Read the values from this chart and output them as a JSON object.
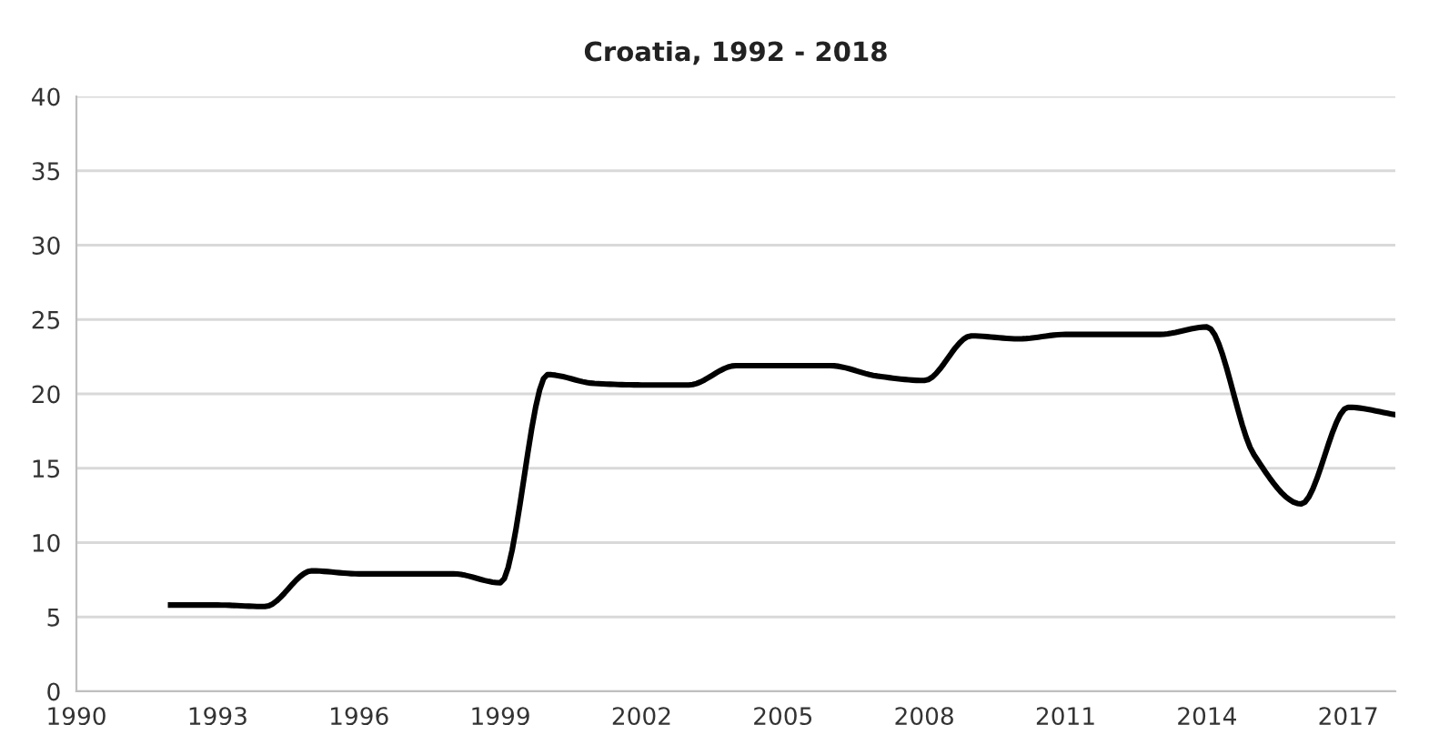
{
  "chart_data": {
    "type": "line",
    "title": "Croatia, 1992 - 2018",
    "x": [
      1992,
      1993,
      1994,
      1995,
      1996,
      1997,
      1998,
      1999,
      2000,
      2001,
      2002,
      2003,
      2004,
      2005,
      2006,
      2007,
      2008,
      2009,
      2010,
      2011,
      2012,
      2013,
      2014,
      2015,
      2016,
      2017,
      2018
    ],
    "series": [
      {
        "color": "#000000",
        "values": [
          5.8,
          5.8,
          5.7,
          8.1,
          7.9,
          7.9,
          7.9,
          7.3,
          21.3,
          20.7,
          20.6,
          20.6,
          21.9,
          21.9,
          21.9,
          21.2,
          20.9,
          23.9,
          23.7,
          24.0,
          24.0,
          24.0,
          24.5,
          15.9,
          12.6,
          19.1,
          18.6
        ]
      }
    ],
    "xlim": [
      1990,
      2018
    ],
    "xticks": [
      1990,
      1993,
      1996,
      1999,
      2002,
      2005,
      2008,
      2011,
      2014,
      2017
    ],
    "ylim": [
      0,
      40
    ],
    "yticks": [
      0,
      5,
      10,
      15,
      20,
      25,
      30,
      35,
      40
    ],
    "grid": "y",
    "marker": "none",
    "line_style": "solid"
  }
}
